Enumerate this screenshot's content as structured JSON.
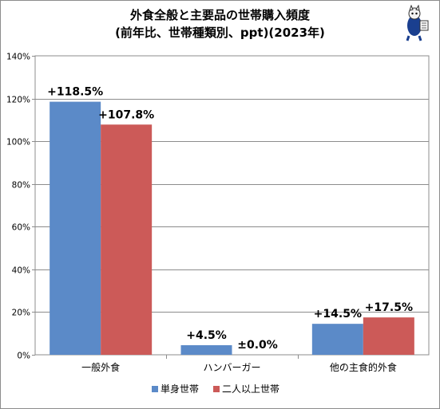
{
  "chart_data": {
    "type": "bar",
    "title_line1": "外食全般と主要品の世帯購入頻度",
    "title_line2": "(前年比、世帯種類別、ppt)(2023年)",
    "categories": [
      "一般外食",
      "ハンバーガー",
      "他の主食的外食"
    ],
    "series": [
      {
        "name": "単身世帯",
        "values": [
          118.5,
          4.5,
          14.5
        ],
        "labels": [
          "+118.5%",
          "+4.5%",
          "+14.5%"
        ],
        "color": "#5b8ac8"
      },
      {
        "name": "二人以上世帯",
        "values": [
          107.8,
          0.0,
          17.5
        ],
        "labels": [
          "+107.8%",
          "±0.0%",
          "+17.5%"
        ],
        "color": "#cc5a58"
      }
    ],
    "ylim": [
      0,
      140
    ],
    "yticks": [
      "0%",
      "20%",
      "40%",
      "60%",
      "80%",
      "100%",
      "120%",
      "140%"
    ],
    "ytick_values": [
      0,
      20,
      40,
      60,
      80,
      100,
      120,
      140
    ],
    "grid": true,
    "legend_position": "bottom"
  }
}
